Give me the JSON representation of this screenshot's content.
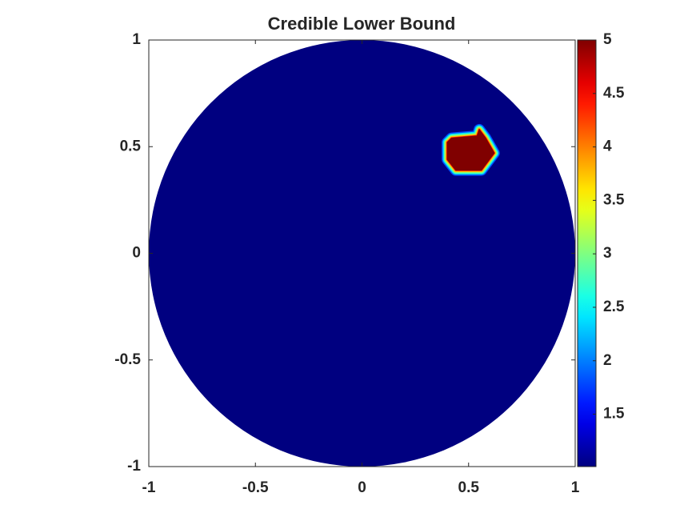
{
  "chart_data": {
    "type": "field",
    "title": "Credible Lower Bound",
    "xlim": [
      -1,
      1
    ],
    "ylim": [
      -1,
      1
    ],
    "xticks": [
      -1,
      -0.5,
      0,
      0.5,
      1
    ],
    "yticks": [
      -1,
      -0.5,
      0,
      0.5,
      1
    ],
    "colormap": "jet",
    "clim": [
      1.01,
      5
    ],
    "cticks": [
      1.5,
      2,
      2.5,
      3,
      3.5,
      4,
      4.5,
      5
    ],
    "disk": {
      "radius": 1,
      "value": 1.01
    },
    "hotspot": {
      "value": 5,
      "x": [
        0.42,
        0.54,
        0.55,
        0.58,
        0.62,
        0.56,
        0.44,
        0.4,
        0.4
      ],
      "y": [
        0.54,
        0.55,
        0.58,
        0.54,
        0.47,
        0.39,
        0.39,
        0.44,
        0.52
      ]
    }
  }
}
